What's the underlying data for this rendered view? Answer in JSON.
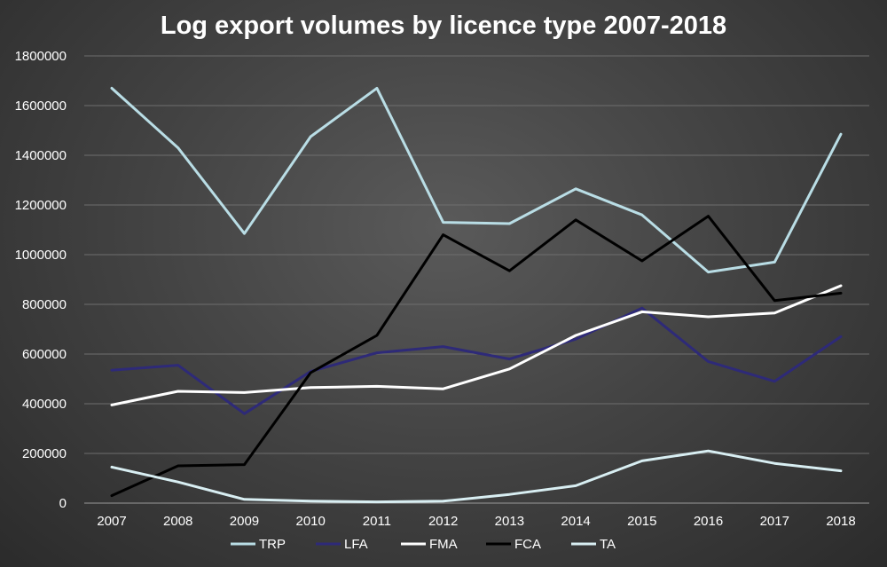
{
  "chart_data": {
    "type": "line",
    "title": "Log export volumes by licence type 2007-2018",
    "x": [
      "2007",
      "2008",
      "2009",
      "2010",
      "2011",
      "2012",
      "2013",
      "2014",
      "2015",
      "2016",
      "2017",
      "2018"
    ],
    "ylim": [
      0,
      1800000
    ],
    "yticks": [
      0,
      200000,
      400000,
      600000,
      800000,
      1000000,
      1200000,
      1400000,
      1600000,
      1800000
    ],
    "grid": true,
    "legend_position": "bottom",
    "series": [
      {
        "name": "TRP",
        "color": "#b9dde5",
        "values": [
          1670000,
          1430000,
          1085000,
          1475000,
          1670000,
          1130000,
          1125000,
          1265000,
          1160000,
          930000,
          970000,
          1485000
        ]
      },
      {
        "name": "LFA",
        "color": "#2e2a78",
        "values": [
          535000,
          555000,
          360000,
          530000,
          605000,
          630000,
          580000,
          660000,
          785000,
          570000,
          490000,
          670000
        ]
      },
      {
        "name": "FMA",
        "color": "#ffffff",
        "values": [
          395000,
          450000,
          445000,
          465000,
          470000,
          460000,
          540000,
          675000,
          770000,
          750000,
          765000,
          875000
        ]
      },
      {
        "name": "FCA",
        "color": "#000000",
        "values": [
          30000,
          150000,
          155000,
          525000,
          675000,
          1080000,
          935000,
          1140000,
          975000,
          1155000,
          815000,
          845000
        ]
      },
      {
        "name": "TA",
        "color": "#d8eef2",
        "values": [
          145000,
          85000,
          15000,
          8000,
          5000,
          8000,
          35000,
          70000,
          170000,
          210000,
          160000,
          130000
        ]
      }
    ]
  }
}
